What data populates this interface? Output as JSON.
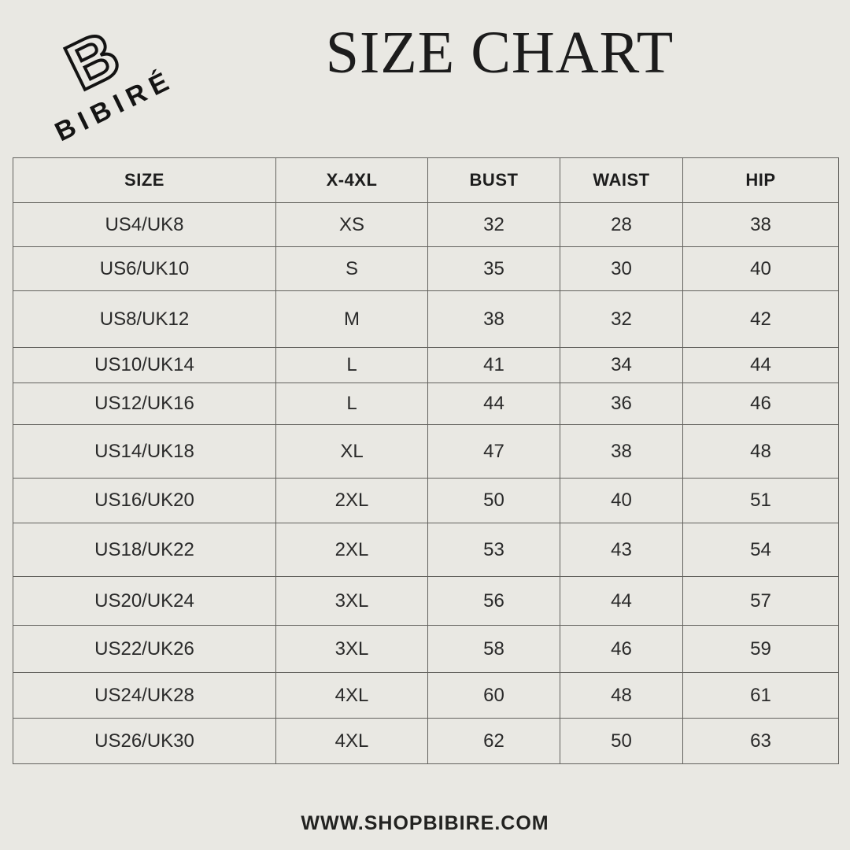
{
  "brand": {
    "monogram": "B",
    "wordmark": "BIBIRÉ",
    "website": "WWW.SHOPBIBIRE.COM"
  },
  "title": "SIZE CHART",
  "table": {
    "headers": [
      "SIZE",
      "X-4XL",
      "BUST",
      "WAIST",
      "HIP"
    ],
    "rows": [
      [
        "US4/UK8",
        "XS",
        "32",
        "28",
        "38"
      ],
      [
        "US6/UK10",
        "S",
        "35",
        "30",
        "40"
      ],
      [
        "US8/UK12",
        "M",
        "38",
        "32",
        "42"
      ],
      [
        "US10/UK14",
        "L",
        "41",
        "34",
        "44"
      ],
      [
        "US12/UK16",
        "L",
        "44",
        "36",
        "46"
      ],
      [
        "US14/UK18",
        "XL",
        "47",
        "38",
        "48"
      ],
      [
        "US16/UK20",
        "2XL",
        "50",
        "40",
        "51"
      ],
      [
        "US18/UK22",
        "2XL",
        "53",
        "43",
        "54"
      ],
      [
        "US20/UK24",
        "3XL",
        "56",
        "44",
        "57"
      ],
      [
        "US22/UK26",
        "3XL",
        "58",
        "46",
        "59"
      ],
      [
        "US24/UK28",
        "4XL",
        "60",
        "48",
        "61"
      ],
      [
        "US26/UK30",
        "4XL",
        "62",
        "50",
        "63"
      ]
    ]
  },
  "colors": {
    "background": "#e9e8e3",
    "grid_line": "#63625e",
    "text": "#1e1e1e"
  }
}
